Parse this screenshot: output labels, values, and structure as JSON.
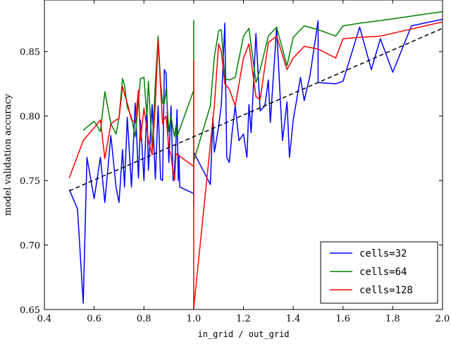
{
  "chart_data": {
    "type": "line",
    "title": "",
    "xlabel": "in_grid / out_grid",
    "ylabel": "model validation accuracy",
    "xlim": [
      0.4,
      2.0
    ],
    "ylim": [
      0.65,
      0.89
    ],
    "xticks": [
      "0.4",
      "0.6",
      "0.8",
      "1.0",
      "1.2",
      "1.4",
      "1.6",
      "1.8",
      "2.0"
    ],
    "xtick_values": [
      0.4,
      0.6,
      0.8,
      1.0,
      1.2,
      1.4,
      1.6,
      1.8,
      2.0
    ],
    "yticks": [
      "0.65",
      "0.70",
      "0.75",
      "0.80",
      "0.85"
    ],
    "ytick_values": [
      0.65,
      0.7,
      0.75,
      0.8,
      0.85
    ],
    "grid": false,
    "legend_position": "bottom-right",
    "series": [
      {
        "name": "cells=32",
        "color": "#0000ff",
        "x": [
          0.5,
          0.533,
          0.556,
          0.571,
          0.6,
          0.625,
          0.643,
          0.667,
          0.688,
          0.7,
          0.714,
          0.722,
          0.733,
          0.75,
          0.765,
          0.778,
          0.786,
          0.8,
          0.812,
          0.818,
          0.833,
          0.846,
          0.857,
          0.867,
          0.875,
          0.882,
          0.889,
          0.9,
          0.909,
          0.917,
          0.923,
          0.929,
          0.933,
          0.938,
          0.941,
          0.944,
          1.0,
          1.0,
          1.0,
          1.067,
          1.077,
          1.083,
          1.091,
          1.1,
          1.111,
          1.125,
          1.133,
          1.143,
          1.154,
          1.167,
          1.182,
          1.2,
          1.214,
          1.222,
          1.231,
          1.25,
          1.267,
          1.286,
          1.3,
          1.308,
          1.333,
          1.357,
          1.375,
          1.385,
          1.4,
          1.429,
          1.444,
          1.467,
          1.5,
          1.5,
          1.571,
          1.6,
          1.667,
          1.714,
          1.75,
          1.8,
          1.875,
          2.0
        ],
        "y": [
          0.743,
          0.728,
          0.655,
          0.768,
          0.736,
          0.768,
          0.733,
          0.785,
          0.745,
          0.733,
          0.774,
          0.745,
          0.799,
          0.745,
          0.81,
          0.752,
          0.797,
          0.75,
          0.808,
          0.758,
          0.809,
          0.751,
          0.808,
          0.751,
          0.75,
          0.836,
          0.833,
          0.764,
          0.808,
          0.75,
          0.76,
          0.781,
          0.805,
          0.75,
          0.77,
          0.745,
          0.74,
          0.73,
          0.772,
          0.747,
          0.799,
          0.772,
          0.781,
          0.792,
          0.809,
          0.872,
          0.768,
          0.764,
          0.787,
          0.808,
          0.781,
          0.786,
          0.768,
          0.809,
          0.787,
          0.864,
          0.804,
          0.808,
          0.828,
          0.795,
          0.868,
          0.781,
          0.811,
          0.768,
          0.797,
          0.83,
          0.812,
          0.831,
          0.874,
          0.826,
          0.825,
          0.827,
          0.869,
          0.836,
          0.86,
          0.834,
          0.87,
          0.875
        ]
      },
      {
        "name": "cells=64",
        "color": "#008000",
        "x": [
          0.556,
          0.6,
          0.625,
          0.643,
          0.667,
          0.688,
          0.7,
          0.714,
          0.722,
          0.733,
          0.75,
          0.765,
          0.778,
          0.786,
          0.8,
          0.812,
          0.818,
          0.833,
          0.846,
          0.857,
          0.867,
          0.875,
          0.882,
          0.889,
          0.9,
          0.909,
          0.917,
          0.923,
          0.929,
          0.933,
          1.0,
          1.0,
          1.0,
          1.067,
          1.083,
          1.1,
          1.111,
          1.125,
          1.143,
          1.167,
          1.2,
          1.222,
          1.25,
          1.267,
          1.3,
          1.333,
          1.375,
          1.4,
          1.444,
          1.5,
          1.571,
          1.6,
          1.667,
          1.75,
          2.0
        ],
        "y": [
          0.789,
          0.796,
          0.788,
          0.819,
          0.794,
          0.786,
          0.799,
          0.829,
          0.824,
          0.807,
          0.799,
          0.784,
          0.812,
          0.829,
          0.83,
          0.8,
          0.827,
          0.774,
          0.826,
          0.862,
          0.826,
          0.81,
          0.81,
          0.821,
          0.788,
          0.8,
          0.79,
          0.784,
          0.793,
          0.784,
          0.82,
          0.874,
          0.765,
          0.808,
          0.846,
          0.866,
          0.867,
          0.829,
          0.828,
          0.83,
          0.862,
          0.868,
          0.826,
          0.836,
          0.862,
          0.869,
          0.839,
          0.861,
          0.87,
          0.867,
          0.862,
          0.87,
          0.872,
          0.874,
          0.881
        ]
      },
      {
        "name": "cells=128",
        "color": "#ff0000",
        "x": [
          0.5,
          0.556,
          0.6,
          0.625,
          0.643,
          0.667,
          0.688,
          0.7,
          0.714,
          0.722,
          0.733,
          0.75,
          0.765,
          0.778,
          0.786,
          0.8,
          0.812,
          0.818,
          0.833,
          0.846,
          0.857,
          0.867,
          0.875,
          0.882,
          0.889,
          0.9,
          0.909,
          0.917,
          0.923,
          0.929,
          1.0,
          1.0,
          1.0,
          1.067,
          1.083,
          1.1,
          1.111,
          1.125,
          1.143,
          1.167,
          1.2,
          1.222,
          1.25,
          1.267,
          1.3,
          1.333,
          1.375,
          1.4,
          1.444,
          1.5,
          1.571,
          1.6,
          1.667,
          1.75,
          2.0
        ],
        "y": [
          0.752,
          0.781,
          0.791,
          0.797,
          0.767,
          0.794,
          0.797,
          0.798,
          0.823,
          0.817,
          0.81,
          0.797,
          0.795,
          0.82,
          0.781,
          0.806,
          0.79,
          0.781,
          0.77,
          0.81,
          0.859,
          0.822,
          0.794,
          0.798,
          0.8,
          0.775,
          0.77,
          0.756,
          0.75,
          0.771,
          0.761,
          0.843,
          0.651,
          0.778,
          0.808,
          0.856,
          0.85,
          0.825,
          0.821,
          0.808,
          0.845,
          0.856,
          0.815,
          0.813,
          0.857,
          0.862,
          0.836,
          0.845,
          0.854,
          0.852,
          0.845,
          0.86,
          0.861,
          0.862,
          0.873
        ]
      },
      {
        "name": "",
        "color": "#000000",
        "style": "dashed",
        "x": [
          0.5,
          2.0
        ],
        "y": [
          0.742,
          0.868
        ]
      }
    ]
  }
}
